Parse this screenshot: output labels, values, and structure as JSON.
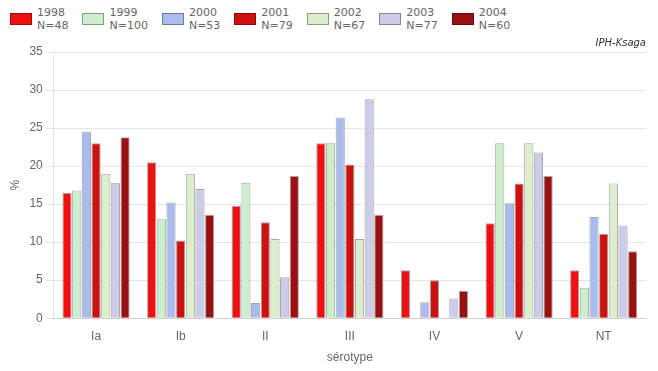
{
  "chart_data": {
    "type": "bar",
    "xlabel": "sérotype",
    "ylabel": "%",
    "annotations": [
      "IPH-Ksaga"
    ],
    "categories": [
      "Ia",
      "Ib",
      "II",
      "III",
      "IV",
      "V",
      "NT"
    ],
    "series": [
      {
        "name": "1998\nN=48",
        "color": "#ee1111",
        "values": [
          16.5,
          20.5,
          14.8,
          23.0,
          6.3,
          12.5,
          6.3
        ]
      },
      {
        "name": "1999\nN=100",
        "color": "#cceecc",
        "values": [
          16.8,
          13.0,
          17.8,
          23.0,
          0.0,
          23.0,
          4.0
        ]
      },
      {
        "name": "2000\nN=53",
        "color": "#aabbee",
        "values": [
          24.5,
          15.2,
          2.0,
          26.4,
          2.1,
          15.1,
          13.3
        ]
      },
      {
        "name": "2001\nN=79",
        "color": "#cc1111",
        "values": [
          23.0,
          10.2,
          12.6,
          20.2,
          5.0,
          17.7,
          11.1
        ]
      },
      {
        "name": "2002\nN=67",
        "color": "#ddeecc",
        "values": [
          19.0,
          19.0,
          10.4,
          10.4,
          0.0,
          23.0,
          17.7
        ]
      },
      {
        "name": "2003\nN=77",
        "color": "#cccce8",
        "values": [
          17.8,
          17.0,
          5.4,
          28.8,
          2.6,
          21.8,
          12.2
        ]
      },
      {
        "name": "2004\nN=60",
        "color": "#991111",
        "values": [
          23.8,
          13.6,
          18.7,
          13.6,
          3.6,
          18.7,
          8.8
        ]
      }
    ],
    "ylim": [
      0,
      35
    ],
    "yticks": [
      0,
      5,
      10,
      15,
      20,
      25,
      30,
      35
    ],
    "grid": true,
    "legend": "upper left"
  }
}
